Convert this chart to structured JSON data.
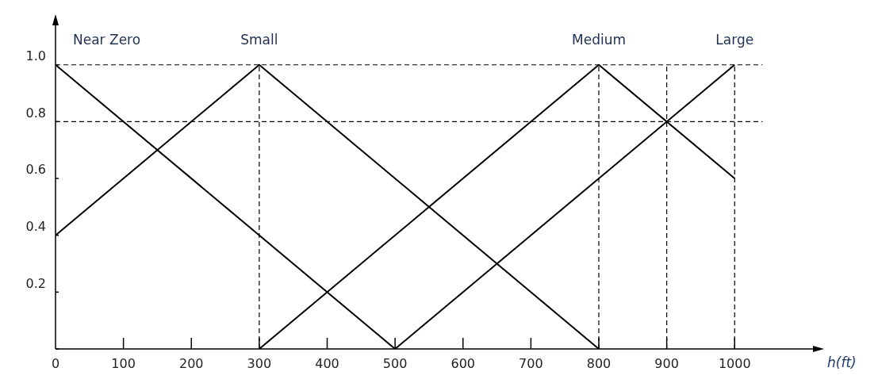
{
  "chart_data": {
    "type": "line",
    "xlabel": "h(ft)",
    "xlim": [
      0,
      1120
    ],
    "ylim": [
      0,
      1.15
    ],
    "xticks": [
      0,
      100,
      200,
      300,
      400,
      500,
      600,
      700,
      800,
      900,
      1000
    ],
    "yticks": [
      {
        "value": 0,
        "label": null
      },
      0.2,
      0.4,
      0.6,
      {
        "value": 0.8,
        "label": "0.8"
      },
      {
        "value": 1,
        "label": "1.0"
      }
    ],
    "grid": false,
    "legend": false,
    "marker": "none",
    "line_style": "solid",
    "series": [
      {
        "name": "Near Zero",
        "color": "#000000",
        "x": [
          0,
          500
        ],
        "values": [
          1,
          0
        ]
      },
      {
        "name": "Small",
        "color": "#000000",
        "x": [
          0,
          300,
          800
        ],
        "values": [
          0.4,
          1,
          0
        ]
      },
      {
        "name": "Medium",
        "color": "#000000",
        "x": [
          300,
          800,
          1000
        ],
        "values": [
          0,
          1,
          0.6
        ]
      },
      {
        "name": "Large",
        "color": "#000000",
        "x": [
          500,
          1000
        ],
        "values": [
          0,
          1
        ]
      }
    ],
    "ref_lines": [
      {
        "axis": "y",
        "value": 1,
        "color": "#000000",
        "line_style": "dashed"
      },
      {
        "axis": "y",
        "value": 0.8,
        "color": "#000000",
        "line_style": "dashed"
      },
      {
        "axis": "x",
        "value": 300,
        "color": "#000000",
        "line_style": "dashed"
      },
      {
        "axis": "x",
        "value": 800,
        "color": "#000000",
        "line_style": "dashed"
      },
      {
        "axis": "x",
        "value": 900,
        "color": "#000000",
        "line_style": "dashed"
      },
      {
        "axis": "x",
        "value": 1000,
        "color": "#000000",
        "line_style": "dashed"
      }
    ]
  }
}
